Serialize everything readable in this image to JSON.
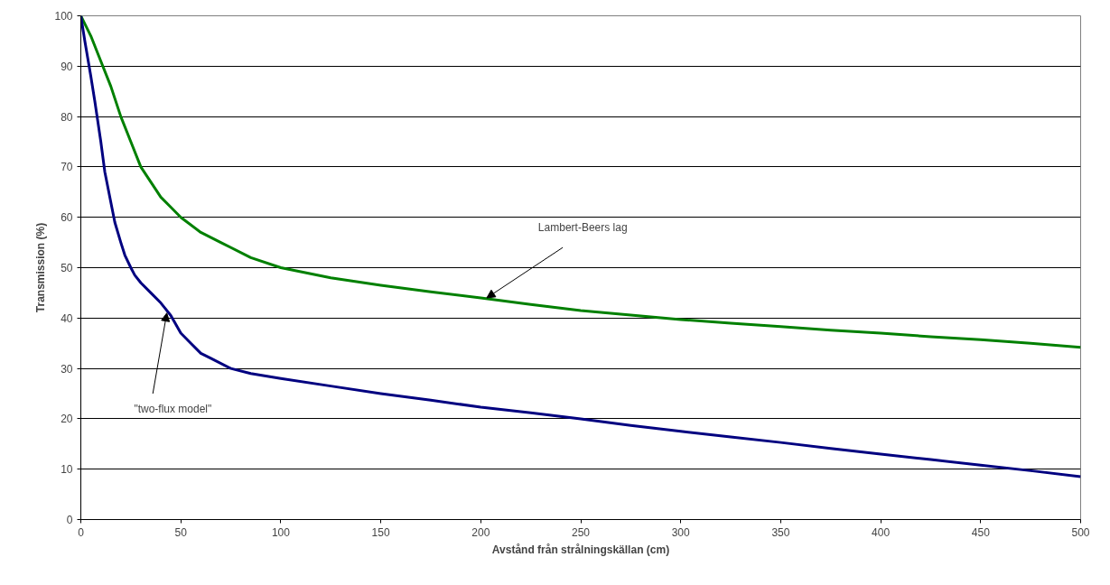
{
  "chart_data": {
    "type": "line",
    "xlabel": "Avstånd från strålningskällan (cm)",
    "ylabel": "Transmission (%)",
    "xlim": [
      0,
      500
    ],
    "xticks": [
      0,
      50,
      100,
      150,
      200,
      250,
      300,
      350,
      400,
      450,
      500
    ],
    "ylim": [
      0,
      100
    ],
    "yticks": [
      0,
      10,
      20,
      30,
      40,
      50,
      60,
      70,
      80,
      90,
      100
    ],
    "grid": "y",
    "marker": "none",
    "line_style": "solid",
    "x": [
      0,
      5,
      10,
      15,
      20,
      25,
      30,
      35,
      40,
      45,
      50,
      60,
      70,
      85,
      100,
      125,
      150,
      175,
      200,
      225,
      250,
      275,
      300,
      325,
      350,
      375,
      400,
      425,
      450,
      475,
      500
    ],
    "series": [
      {
        "color": "#008000",
        "values": [
          100,
          96,
          91,
          86,
          80,
          75,
          70,
          67,
          64,
          62,
          60,
          57,
          55,
          52,
          50,
          48,
          46.5,
          45.2,
          44,
          42.7,
          41.5,
          40.6,
          39.7,
          39,
          38.3,
          37.6,
          37,
          36.3,
          35.7,
          35,
          34.2
        ]
      },
      {
        "color": "#000080",
        "x": [
          0,
          2,
          5,
          7,
          10,
          12,
          15,
          17,
          20,
          22,
          25,
          27,
          30,
          35,
          40,
          42,
          45,
          50,
          55,
          60,
          65,
          75,
          85,
          100,
          125,
          150,
          175,
          200,
          225,
          250,
          275,
          300,
          325,
          350,
          375,
          400,
          425,
          450,
          475,
          500
        ],
        "values": [
          100,
          95,
          88,
          83,
          75,
          69,
          63,
          59,
          55,
          52.5,
          50,
          48.5,
          47,
          45,
          43,
          42,
          40.5,
          37,
          35,
          33,
          32,
          30,
          29,
          28,
          26.5,
          25,
          23.7,
          22.3,
          21.2,
          20,
          18.7,
          17.5,
          16.4,
          15.3,
          14.1,
          13,
          11.9,
          10.8,
          9.7,
          8.5
        ]
      }
    ],
    "annotations": [
      {
        "text": "Lambert-Beers lag",
        "x": 203,
        "y": 44
      },
      {
        "text": "\"two-flux model\"",
        "x": 43,
        "y": 41
      }
    ]
  }
}
